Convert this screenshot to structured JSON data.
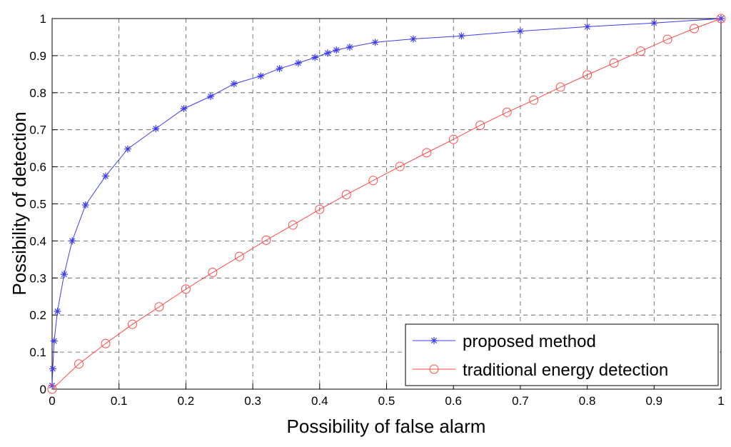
{
  "chart_data": {
    "type": "line",
    "xlabel": "Possibility of false alarm",
    "ylabel": "Possibility of detection",
    "xlim": [
      0,
      1
    ],
    "ylim": [
      0,
      1
    ],
    "xticks": [
      0,
      0.1,
      0.2,
      0.3,
      0.4,
      0.5,
      0.6,
      0.7,
      0.8,
      0.9,
      1
    ],
    "yticks": [
      0,
      0.1,
      0.2,
      0.3,
      0.4,
      0.5,
      0.6,
      0.7,
      0.8,
      0.9,
      1
    ],
    "grid": true,
    "legend": "lower right",
    "series": [
      {
        "name": "proposed method",
        "color": "#3c3cf0",
        "marker": "asterisk",
        "x": [
          0,
          0.001,
          0.003,
          0.008,
          0.018,
          0.03,
          0.05,
          0.08,
          0.113,
          0.155,
          0.197,
          0.237,
          0.272,
          0.312,
          0.34,
          0.368,
          0.393,
          0.412,
          0.425,
          0.445,
          0.483,
          0.54,
          0.612,
          0.7,
          0.8,
          0.9,
          1
        ],
        "values": [
          0.01,
          0.055,
          0.13,
          0.21,
          0.31,
          0.4,
          0.497,
          0.575,
          0.648,
          0.703,
          0.757,
          0.79,
          0.824,
          0.845,
          0.865,
          0.88,
          0.895,
          0.907,
          0.915,
          0.923,
          0.936,
          0.945,
          0.953,
          0.966,
          0.978,
          0.988,
          1
        ]
      },
      {
        "name": "traditional energy detection",
        "color": "#ff4a4a",
        "marker": "circle",
        "x": [
          0,
          0.04,
          0.08,
          0.12,
          0.16,
          0.2,
          0.24,
          0.28,
          0.32,
          0.36,
          0.4,
          0.44,
          0.48,
          0.52,
          0.56,
          0.6,
          0.64,
          0.68,
          0.72,
          0.76,
          0.8,
          0.84,
          0.88,
          0.92,
          0.96,
          1
        ],
        "values": [
          0,
          0.068,
          0.123,
          0.175,
          0.222,
          0.27,
          0.315,
          0.358,
          0.402,
          0.443,
          0.485,
          0.525,
          0.563,
          0.601,
          0.638,
          0.674,
          0.712,
          0.747,
          0.78,
          0.815,
          0.848,
          0.88,
          0.912,
          0.944,
          0.973,
          1
        ]
      }
    ]
  }
}
